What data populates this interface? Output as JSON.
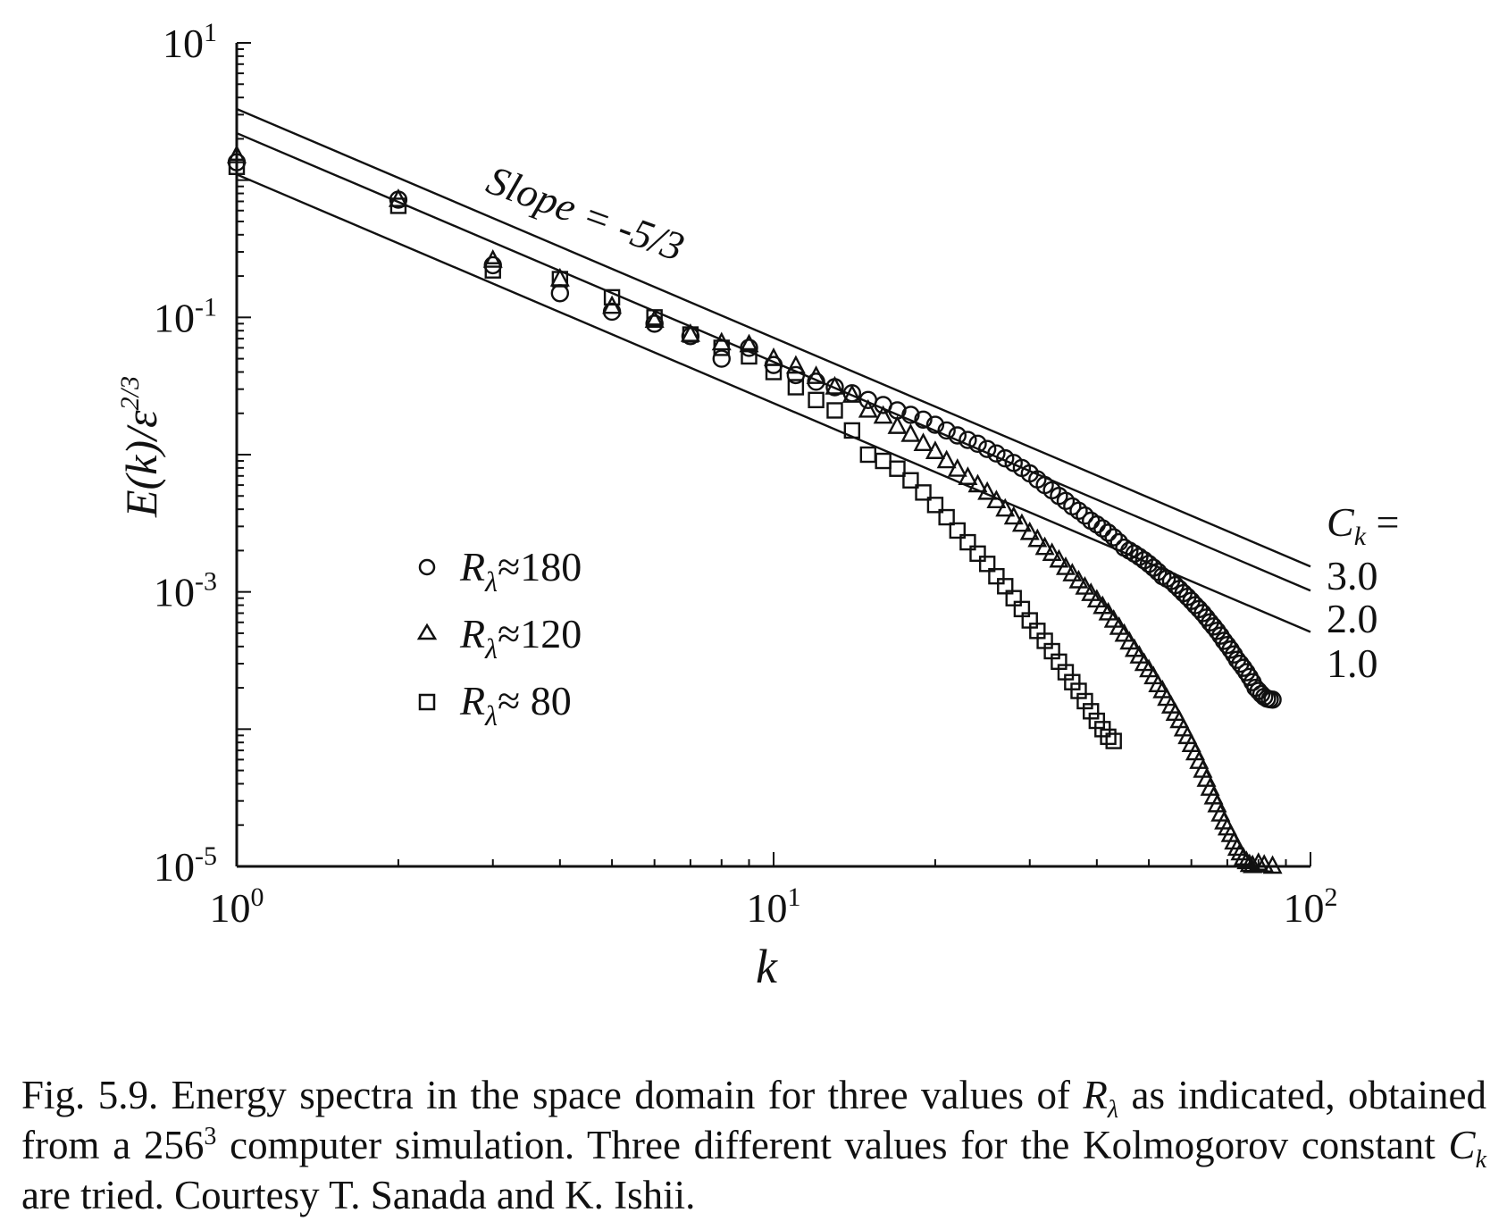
{
  "chart_data": {
    "type": "scatter",
    "title": "",
    "xlabel": "k",
    "ylabel": "E(k)/ε",
    "ylabel_exponent": "2/3",
    "x_scale": "log",
    "y_scale": "log",
    "xlim": [
      1,
      100
    ],
    "ylim": [
      1e-05,
      10
    ],
    "grid": false,
    "x_ticks": [
      {
        "value": 1,
        "base": "10",
        "exp": "0"
      },
      {
        "value": 10,
        "base": "10",
        "exp": "1"
      },
      {
        "value": 100,
        "base": "10",
        "exp": "2"
      }
    ],
    "y_ticks": [
      {
        "value": 10,
        "base": "10",
        "exp": "1"
      },
      {
        "value": 0.1,
        "base": "10",
        "exp": "-1"
      },
      {
        "value": 0.001,
        "base": "10",
        "exp": "-3"
      },
      {
        "value": 1e-05,
        "base": "10",
        "exp": "-5"
      }
    ],
    "legend": {
      "placement": "bottom-left",
      "entries": [
        {
          "symbol": "circle",
          "prefix": "R",
          "sub": "λ",
          "text": "≈180"
        },
        {
          "symbol": "triangle",
          "prefix": "R",
          "sub": "λ",
          "text": "≈120"
        },
        {
          "symbol": "square",
          "prefix": "R",
          "sub": "λ",
          "text": "≈ 80"
        }
      ]
    },
    "slope_annotation": "Slope = -5/3",
    "ck_label": "C",
    "ck_sub": "k",
    "ck_eq": " =",
    "reference_lines": [
      {
        "label": "3.0",
        "ck": 3.0,
        "slope": -1.6667
      },
      {
        "label": "2.0",
        "ck": 2.0,
        "slope": -1.6667
      },
      {
        "label": "1.0",
        "ck": 1.0,
        "slope": -1.6667
      }
    ],
    "series": [
      {
        "name": "R_λ≈180",
        "marker": "circle",
        "points": [
          [
            1,
            1.35
          ],
          [
            2,
            0.72
          ],
          [
            3,
            0.24
          ],
          [
            4,
            0.15
          ],
          [
            5,
            0.11
          ],
          [
            6,
            0.09
          ],
          [
            7,
            0.073
          ],
          [
            8,
            0.05
          ],
          [
            9,
            0.06
          ],
          [
            10,
            0.045
          ],
          [
            11,
            0.038
          ],
          [
            12,
            0.034
          ],
          [
            13,
            0.031
          ],
          [
            14,
            0.028
          ],
          [
            15,
            0.025
          ],
          [
            16,
            0.023
          ],
          [
            17,
            0.021
          ],
          [
            18,
            0.0195
          ],
          [
            19,
            0.018
          ],
          [
            20,
            0.0165
          ],
          [
            21,
            0.015
          ],
          [
            22,
            0.0138
          ],
          [
            23,
            0.0128
          ],
          [
            24,
            0.012
          ],
          [
            25,
            0.011
          ],
          [
            26,
            0.0102
          ],
          [
            27,
            0.0094
          ],
          [
            28,
            0.0087
          ],
          [
            29,
            0.008
          ],
          [
            30,
            0.0073
          ],
          [
            31,
            0.0066
          ],
          [
            32,
            0.006
          ],
          [
            33,
            0.0055
          ],
          [
            34,
            0.005
          ],
          [
            35,
            0.0046
          ],
          [
            36,
            0.0042
          ],
          [
            37,
            0.0039
          ],
          [
            38,
            0.0036
          ],
          [
            39,
            0.0033
          ],
          [
            40,
            0.0031
          ],
          [
            41,
            0.0029
          ],
          [
            42,
            0.0027
          ],
          [
            43,
            0.0025
          ],
          [
            44,
            0.0023
          ],
          [
            45,
            0.0021
          ],
          [
            46,
            0.002
          ],
          [
            47,
            0.0019
          ],
          [
            48,
            0.0018
          ],
          [
            49,
            0.0017
          ],
          [
            50,
            0.0016
          ],
          [
            51,
            0.0015
          ],
          [
            52,
            0.0014
          ],
          [
            53,
            0.0013
          ],
          [
            54,
            0.00125
          ],
          [
            55,
            0.0012
          ],
          [
            56,
            0.00112
          ],
          [
            57,
            0.00105
          ],
          [
            58,
            0.00098
          ],
          [
            59,
            0.00092
          ],
          [
            60,
            0.00086
          ],
          [
            61,
            0.0008
          ],
          [
            62,
            0.00075
          ],
          [
            63,
            0.0007
          ],
          [
            64,
            0.00065
          ],
          [
            65,
            0.0006
          ],
          [
            66,
            0.00056
          ],
          [
            67,
            0.00052
          ],
          [
            68,
            0.00048
          ],
          [
            69,
            0.00044
          ],
          [
            70,
            0.00041
          ],
          [
            71,
            0.00038
          ],
          [
            72,
            0.00035
          ],
          [
            73,
            0.00032
          ],
          [
            74,
            0.0003
          ],
          [
            75,
            0.00028
          ],
          [
            76,
            0.00026
          ],
          [
            77,
            0.00024
          ],
          [
            78,
            0.00022
          ],
          [
            79,
            0.0002
          ],
          [
            80,
            0.00019
          ],
          [
            81,
            0.00018
          ],
          [
            82,
            0.000172
          ],
          [
            83,
            0.000167
          ],
          [
            84,
            0.000165
          ],
          [
            85,
            0.000164
          ]
        ]
      },
      {
        "name": "R_λ≈120",
        "marker": "triangle",
        "points": [
          [
            1,
            1.5
          ],
          [
            2,
            0.72
          ],
          [
            3,
            0.26
          ],
          [
            4,
            0.19
          ],
          [
            5,
            0.12
          ],
          [
            6,
            0.095
          ],
          [
            7,
            0.075
          ],
          [
            8,
            0.065
          ],
          [
            9,
            0.063
          ],
          [
            10,
            0.05
          ],
          [
            11,
            0.044
          ],
          [
            12,
            0.037
          ],
          [
            13,
            0.031
          ],
          [
            14,
            0.027
          ],
          [
            15,
            0.021
          ],
          [
            16,
            0.019
          ],
          [
            17,
            0.016
          ],
          [
            18,
            0.014
          ],
          [
            19,
            0.012
          ],
          [
            20,
            0.0105
          ],
          [
            21,
            0.009
          ],
          [
            22,
            0.0078
          ],
          [
            23,
            0.0068
          ],
          [
            24,
            0.006
          ],
          [
            25,
            0.0053
          ],
          [
            26,
            0.0046
          ],
          [
            27,
            0.004
          ],
          [
            28,
            0.0035
          ],
          [
            29,
            0.0031
          ],
          [
            30,
            0.0027
          ],
          [
            31,
            0.0024
          ],
          [
            32,
            0.0021
          ],
          [
            33,
            0.0019
          ],
          [
            34,
            0.0017
          ],
          [
            35,
            0.0015
          ],
          [
            36,
            0.00135
          ],
          [
            37,
            0.0012
          ],
          [
            38,
            0.00108
          ],
          [
            39,
            0.00097
          ],
          [
            40,
            0.00087
          ],
          [
            41,
            0.00078
          ],
          [
            42,
            0.0007
          ],
          [
            43,
            0.00062
          ],
          [
            44,
            0.00055
          ],
          [
            45,
            0.00049
          ],
          [
            46,
            0.00043
          ],
          [
            47,
            0.00038
          ],
          [
            48,
            0.00034
          ],
          [
            49,
            0.0003
          ],
          [
            50,
            0.00027
          ],
          [
            51,
            0.00024
          ],
          [
            52,
            0.00021
          ],
          [
            53,
            0.00019
          ],
          [
            54,
            0.000167
          ],
          [
            55,
            0.000147
          ],
          [
            56,
            0.00013
          ],
          [
            57,
            0.000115
          ],
          [
            58,
            0.0001
          ],
          [
            59,
            8.8e-05
          ],
          [
            60,
            7.7e-05
          ],
          [
            61,
            6.7e-05
          ],
          [
            62,
            5.8e-05
          ],
          [
            63,
            5e-05
          ],
          [
            64,
            4.3e-05
          ],
          [
            65,
            3.7e-05
          ],
          [
            66,
            3.2e-05
          ],
          [
            67,
            2.8e-05
          ],
          [
            68,
            2.4e-05
          ],
          [
            69,
            2.1e-05
          ],
          [
            70,
            1.9e-05
          ],
          [
            71,
            1.7e-05
          ],
          [
            72,
            1.5e-05
          ],
          [
            73,
            1.35e-05
          ],
          [
            74,
            1.25e-05
          ],
          [
            75,
            1.15e-05
          ],
          [
            76,
            1.08e-05
          ],
          [
            77,
            1.03e-05
          ],
          [
            78,
            1.01e-05
          ],
          [
            80,
            1.05e-05
          ],
          [
            82,
            1.02e-05
          ],
          [
            85,
            1e-05
          ]
        ]
      },
      {
        "name": "R_λ≈ 80",
        "marker": "square",
        "points": [
          [
            1,
            1.25
          ],
          [
            2,
            0.65
          ],
          [
            3,
            0.22
          ],
          [
            4,
            0.19
          ],
          [
            5,
            0.14
          ],
          [
            6,
            0.1
          ],
          [
            7,
            0.075
          ],
          [
            8,
            0.06
          ],
          [
            9,
            0.052
          ],
          [
            10,
            0.04
          ],
          [
            11,
            0.031
          ],
          [
            12,
            0.025
          ],
          [
            13,
            0.021
          ],
          [
            14,
            0.015
          ],
          [
            15,
            0.01
          ],
          [
            16,
            0.009
          ],
          [
            17,
            0.0079
          ],
          [
            18,
            0.0065
          ],
          [
            19,
            0.0053
          ],
          [
            20,
            0.0043
          ],
          [
            21,
            0.0035
          ],
          [
            22,
            0.0028
          ],
          [
            23,
            0.0023
          ],
          [
            24,
            0.0019
          ],
          [
            25,
            0.0016
          ],
          [
            26,
            0.0013
          ],
          [
            27,
            0.0011
          ],
          [
            28,
            0.0009
          ],
          [
            29,
            0.00075
          ],
          [
            30,
            0.00062
          ],
          [
            31,
            0.00052
          ],
          [
            32,
            0.00044
          ],
          [
            33,
            0.00037
          ],
          [
            34,
            0.00031
          ],
          [
            35,
            0.00026
          ],
          [
            36,
            0.00022
          ],
          [
            37,
            0.00019
          ],
          [
            38,
            0.00016
          ],
          [
            39,
            0.000135
          ],
          [
            40,
            0.000115
          ],
          [
            41,
            0.0001
          ],
          [
            42,
            8.8e-05
          ],
          [
            43,
            8.2e-05
          ]
        ]
      }
    ]
  },
  "caption": {
    "pre": "Fig. 5.9. Energy spectra in the space domain for three values of ",
    "r": "R",
    "r_sub": "λ",
    "mid1": " as indicated, obtained from a 256",
    "mid1_sup": "3",
    "mid2": " computer simulation. Three different values for the Kolmogorov constant ",
    "ck": "C",
    "ck_sub": "k",
    "post": " are tried. Courtesy T. Sanada and K. Ishii."
  }
}
